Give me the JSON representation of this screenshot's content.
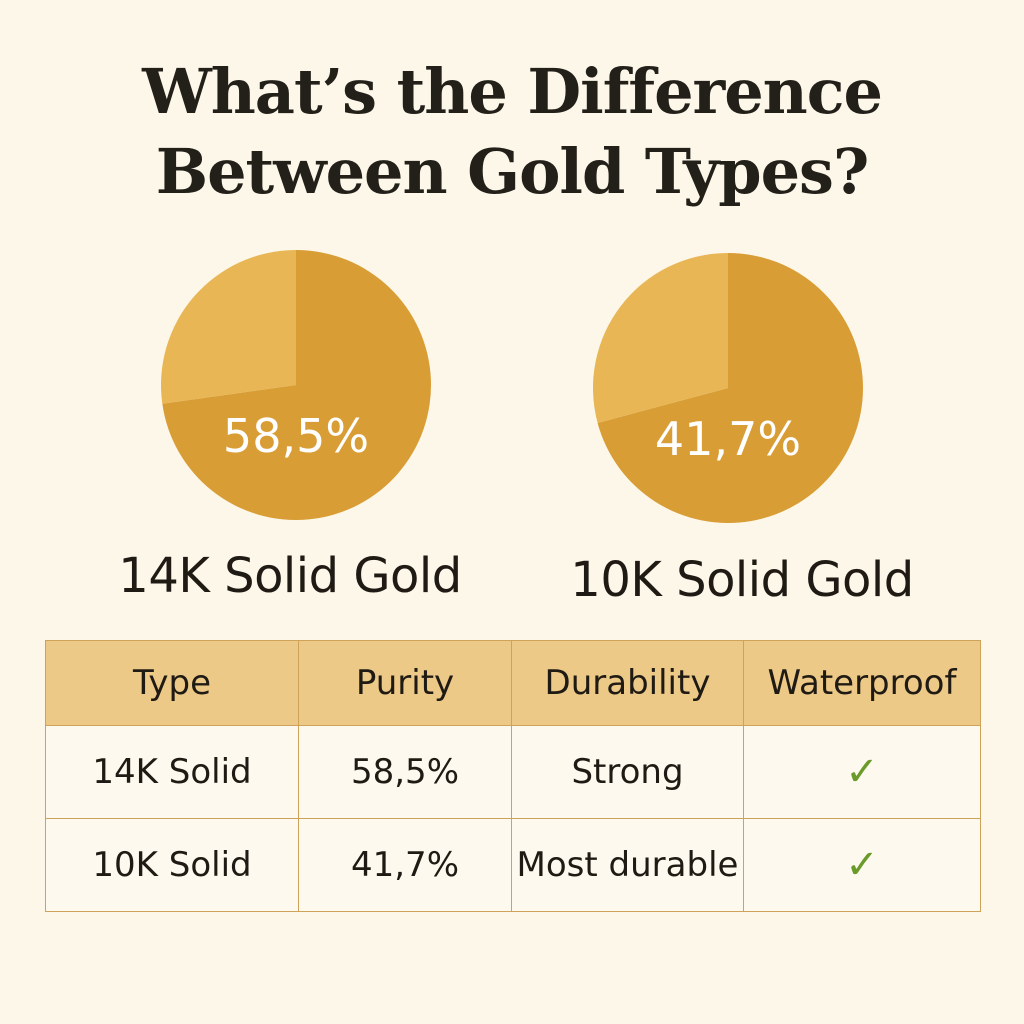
{
  "title": {
    "line1": "What’s the Difference",
    "line2": "Between Gold Types?"
  },
  "colors": {
    "background": "#fdf7ea",
    "pie_main": "#d99d35",
    "pie_light": "#e8b655",
    "header_bg": "#edc987",
    "border": "#cfa25a",
    "check": "#6a9a2a"
  },
  "chart_data": [
    {
      "type": "pie",
      "label": "58,5%",
      "value": 58.5,
      "caption": "14K Solid Gold"
    },
    {
      "type": "pie",
      "label": "41,7%",
      "value": 41.7,
      "caption": "10K Solid Gold"
    }
  ],
  "table": {
    "headers": [
      "Type",
      "Purity",
      "Durability",
      "Waterproof"
    ],
    "rows": [
      {
        "type": "14K Solid",
        "purity": "58,5%",
        "durability": "Strong",
        "waterproof": "check-icon"
      },
      {
        "type": "10K Solid",
        "purity": "41,7%",
        "durability": "Most durable",
        "waterproof": "check-icon"
      }
    ]
  }
}
